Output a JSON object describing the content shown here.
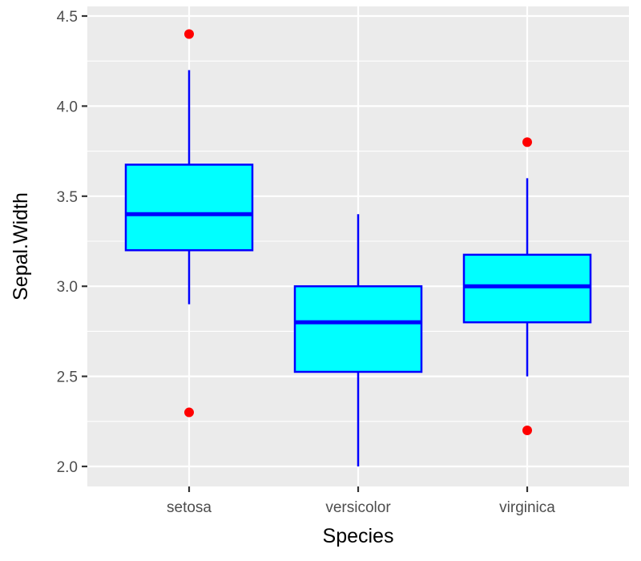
{
  "chart_data": {
    "type": "box",
    "xlabel": "Species",
    "ylabel": "Sepal.Width",
    "categories": [
      "setosa",
      "versicolor",
      "virginica"
    ],
    "ylim": [
      1.94,
      4.5
    ],
    "yticks": [
      2.0,
      2.5,
      3.0,
      3.5,
      4.0,
      4.5
    ],
    "ytick_labels": [
      "2.0",
      "2.5",
      "3.0",
      "3.5",
      "4.0",
      "4.5"
    ],
    "grid": true,
    "boxes": [
      {
        "category": "setosa",
        "whisker_low": 2.9,
        "q1": 3.2,
        "median": 3.4,
        "q3": 3.675,
        "whisker_high": 4.2,
        "outliers": [
          4.4,
          2.3
        ]
      },
      {
        "category": "versicolor",
        "whisker_low": 2.0,
        "q1": 2.525,
        "median": 2.8,
        "q3": 3.0,
        "whisker_high": 3.4,
        "outliers": []
      },
      {
        "category": "virginica",
        "whisker_low": 2.5,
        "q1": 2.8,
        "median": 3.0,
        "q3": 3.175,
        "whisker_high": 3.6,
        "outliers": [
          3.8,
          2.2
        ]
      }
    ],
    "colors": {
      "panel": "#ebebeb",
      "grid": "#ffffff",
      "box_fill": "#00ffff",
      "box_outline": "#0000ff",
      "outlier": "#ff0000",
      "tick": "#333333"
    }
  }
}
